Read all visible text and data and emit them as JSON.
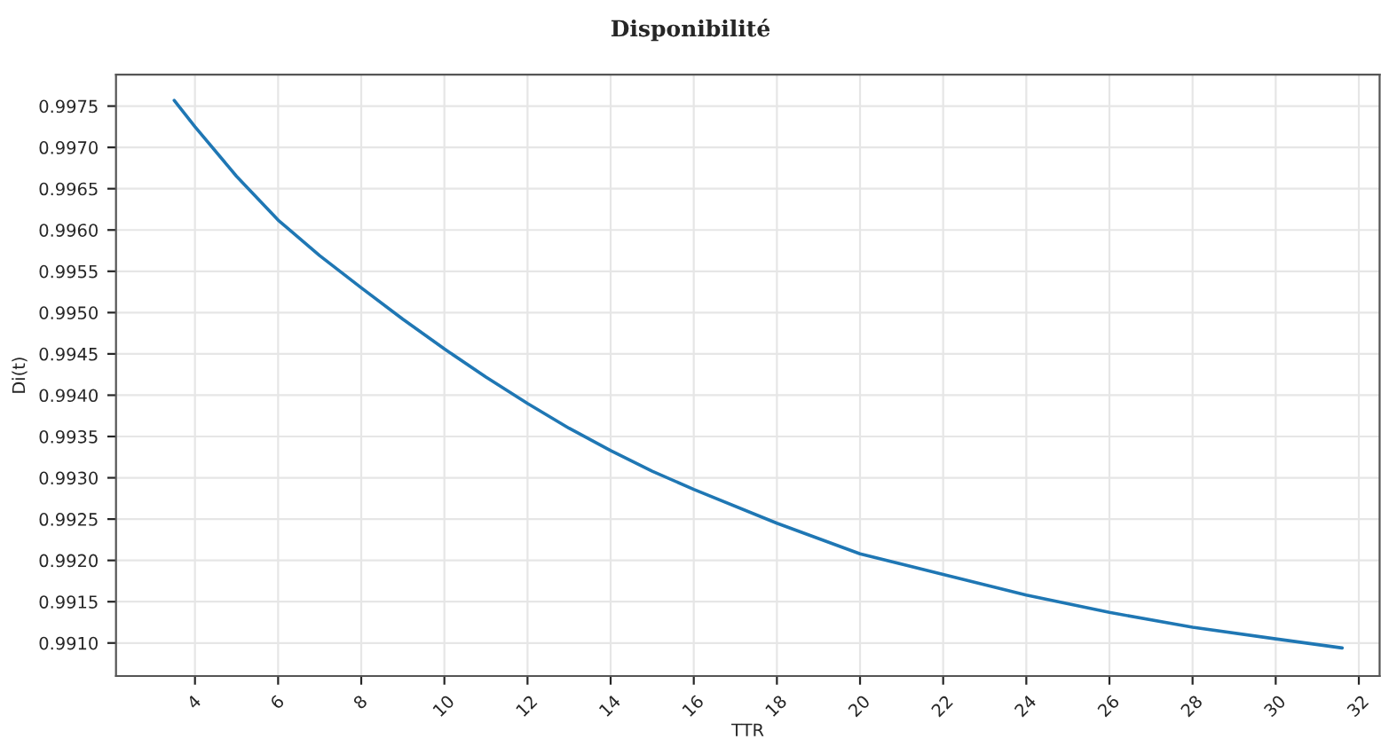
{
  "chart_data": {
    "type": "line",
    "title": "Disponibilité",
    "xlabel": "TTR",
    "ylabel": "Di(t)",
    "x": [
      3.5,
      4,
      5,
      6,
      7,
      8,
      9,
      10,
      11,
      12,
      13,
      14,
      15,
      16,
      18,
      20,
      22,
      24,
      26,
      28,
      30,
      31.6
    ],
    "series": [
      {
        "color": "#1f77b4",
        "values": [
          0.99757,
          0.99725,
          0.99665,
          0.99612,
          0.99569,
          0.9953,
          0.99492,
          0.99456,
          0.99422,
          0.9939,
          0.9936,
          0.99333,
          0.99308,
          0.99286,
          0.99245,
          0.99208,
          0.99183,
          0.99158,
          0.99137,
          0.99119,
          0.99105,
          0.99094
        ]
      }
    ],
    "xlim": [
      2.1,
      32.5
    ],
    "ylim": [
      0.9906,
      0.99788
    ],
    "xticks": [
      4,
      6,
      8,
      10,
      12,
      14,
      16,
      18,
      20,
      22,
      24,
      26,
      28,
      30,
      32
    ],
    "yticks": [
      {
        "value": 0.991,
        "label": "0.9910"
      },
      {
        "value": 0.9915,
        "label": "0.9915"
      },
      {
        "value": 0.992,
        "label": "0.9920"
      },
      {
        "value": 0.9925,
        "label": "0.9925"
      },
      {
        "value": 0.993,
        "label": "0.9930"
      },
      {
        "value": 0.9935,
        "label": "0.9935"
      },
      {
        "value": 0.994,
        "label": "0.9940"
      },
      {
        "value": 0.9945,
        "label": "0.9945"
      },
      {
        "value": 0.995,
        "label": "0.9950"
      },
      {
        "value": 0.9955,
        "label": "0.9955"
      },
      {
        "value": 0.996,
        "label": "0.9960"
      },
      {
        "value": 0.9965,
        "label": "0.9965"
      },
      {
        "value": 0.997,
        "label": "0.9970"
      },
      {
        "value": 0.9975,
        "label": "0.9975"
      }
    ],
    "grid": true,
    "legend": false,
    "marker": "none",
    "line_style": "solid"
  }
}
